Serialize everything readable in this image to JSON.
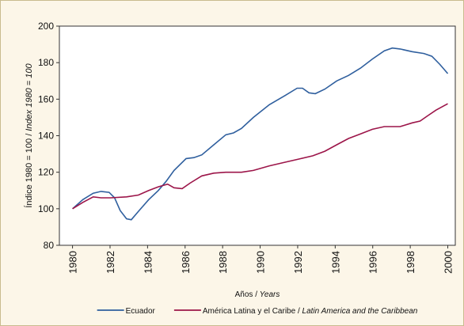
{
  "chart_data": {
    "type": "line",
    "xlabel": "Años / Years",
    "ylabel": "Índice 1980 = 100 / Index 1980 = 100",
    "xlim": [
      1979.3,
      2000.4
    ],
    "xticks": [
      1980,
      1982,
      1984,
      1986,
      1988,
      1990,
      1992,
      1994,
      1996,
      1998,
      2000
    ],
    "ylim": [
      80,
      200
    ],
    "yticks": [
      80,
      100,
      120,
      140,
      160,
      180,
      200
    ],
    "legend": "bottom",
    "series": [
      {
        "name": "Ecuador",
        "color": "#2f5f9e",
        "x": [
          1980,
          1980.55,
          1981.1,
          1981.52,
          1981.95,
          1982.24,
          1982.54,
          1982.88,
          1983.13,
          1983.55,
          1984.06,
          1984.57,
          1984.99,
          1985.41,
          1986.05,
          1986.47,
          1986.89,
          1987.53,
          1988.17,
          1988.58,
          1989.0,
          1989.64,
          1990.49,
          1991.33,
          1991.97,
          1992.26,
          1992.6,
          1992.94,
          1993.45,
          1994.08,
          1994.71,
          1995.35,
          1995.98,
          1996.62,
          1997.04,
          1997.46,
          1998.1,
          1998.73,
          1999.15,
          1999.58,
          2000
        ],
        "values": [
          100,
          105,
          108.5,
          109.5,
          109,
          106,
          99,
          94.5,
          94,
          99,
          105,
          110,
          115,
          121,
          127.5,
          128,
          129.5,
          135,
          140.5,
          141.5,
          144,
          150,
          157,
          162,
          166,
          166,
          163.5,
          163,
          165.5,
          170,
          173,
          177,
          182,
          186.5,
          188,
          187.5,
          186,
          185,
          183.5,
          179,
          174
        ]
      },
      {
        "name": "América Latina y el Caribe / Latin America and the Caribbean",
        "color": "#9c1549",
        "x": [
          1980,
          1980.55,
          1981.1,
          1981.52,
          1982.03,
          1982.88,
          1983.51,
          1984.06,
          1984.57,
          1985.07,
          1985.41,
          1985.84,
          1986.26,
          1986.89,
          1987.53,
          1988.16,
          1989.0,
          1989.64,
          1990.49,
          1991.33,
          1992.18,
          1992.81,
          1993.45,
          1994.08,
          1994.71,
          1995.35,
          1995.98,
          1996.62,
          1997.46,
          1998.1,
          1998.52,
          1998.94,
          1999.37,
          2000
        ],
        "values": [
          100,
          103.5,
          106.5,
          106,
          106,
          106.5,
          107.5,
          110,
          112,
          113.5,
          111.5,
          111,
          114,
          118,
          119.5,
          120,
          120,
          121,
          123.5,
          125.5,
          127.5,
          129,
          131.5,
          135,
          138.5,
          141,
          143.5,
          145,
          145,
          147,
          148,
          151,
          154,
          157.5
        ]
      }
    ]
  }
}
